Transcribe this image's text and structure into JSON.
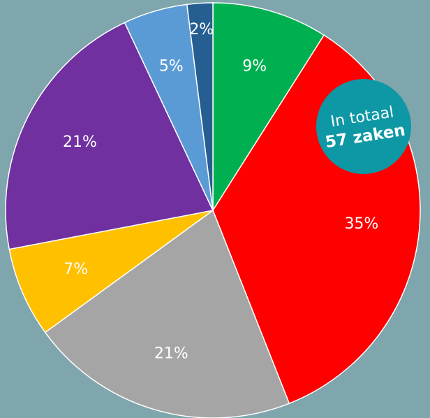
{
  "chart_data": {
    "type": "pie",
    "values": [
      9,
      35,
      21,
      7,
      21,
      5,
      2
    ],
    "value_labels": [
      "9%",
      "35%",
      "21%",
      "7%",
      "21%",
      "5%",
      "2%"
    ],
    "colors": [
      "#00b050",
      "#ff0000",
      "#a5a5a5",
      "#ffc000",
      "#7030a0",
      "#5b9bd5",
      "#255e91"
    ],
    "annotation": [
      "In totaal",
      "57 zaken"
    ]
  }
}
